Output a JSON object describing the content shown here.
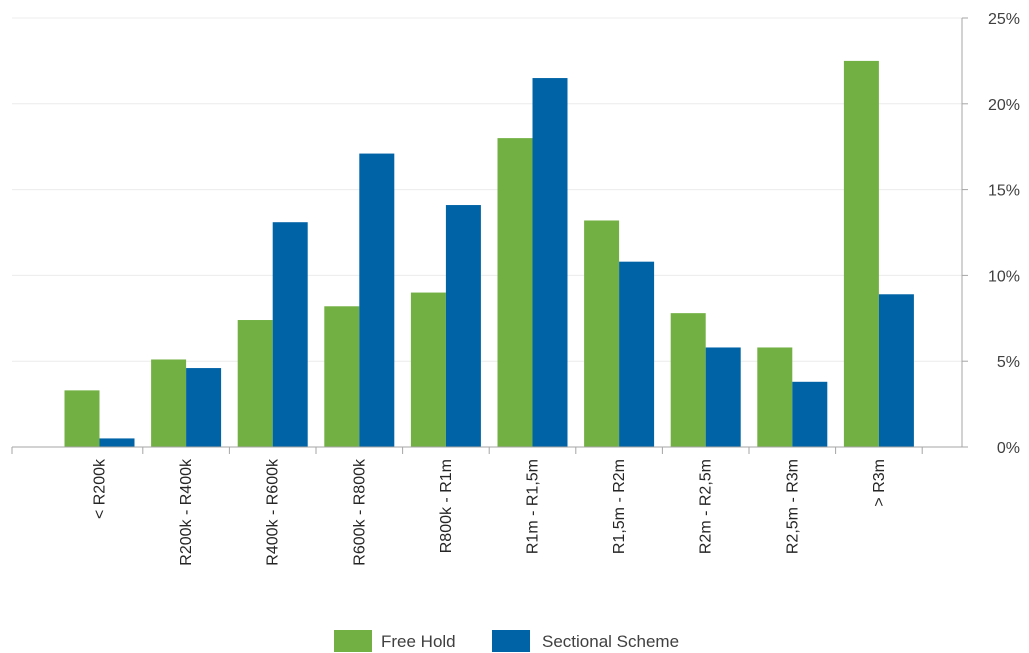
{
  "chart_data": {
    "type": "bar",
    "categories": [
      "< R200k",
      "R200k - R400k",
      "R400k - R600k",
      "R600k - R800k",
      "R800k - R1m",
      "R1m - R1,5m",
      "R1,5m - R2m",
      "R2m - R2,5m",
      "R2,5m - R3m",
      "> R3m"
    ],
    "series": [
      {
        "name": "Free Hold",
        "color": "#72b043",
        "values": [
          3.3,
          5.1,
          7.4,
          8.2,
          9.0,
          18.0,
          13.2,
          7.8,
          5.8,
          22.5
        ]
      },
      {
        "name": "Sectional Scheme",
        "color": "#0063a6",
        "values": [
          0.5,
          4.6,
          13.1,
          17.1,
          14.1,
          21.5,
          10.8,
          5.8,
          3.8,
          8.9
        ]
      }
    ],
    "ylim": [
      0,
      25
    ],
    "yticks": [
      "0%",
      "5%",
      "10%",
      "15%",
      "20%",
      "25%"
    ],
    "ytick_values": [
      0,
      5,
      10,
      15,
      20,
      25
    ],
    "y_axis_position": "right",
    "grid": true,
    "legend": "bottom-center",
    "title": "",
    "xlabel": "",
    "ylabel": ""
  }
}
